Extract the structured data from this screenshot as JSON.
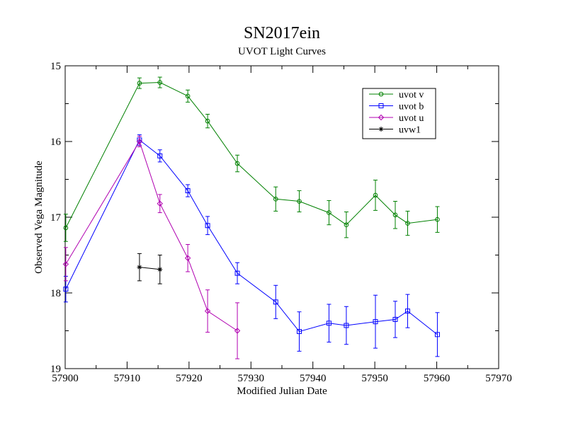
{
  "chart_data": {
    "type": "line",
    "title": "SN2017ein",
    "subtitle": "UVOT Light Curves",
    "xlabel": "Modified Julian Date",
    "ylabel": "Observed Vega Magnitude",
    "xlim": [
      57900,
      57970
    ],
    "ylim": [
      15,
      19
    ],
    "y_inverted": true,
    "x_ticks": [
      "57900",
      "57910",
      "57920",
      "57930",
      "57940",
      "57950",
      "57960",
      "57970"
    ],
    "y_ticks": [
      "15",
      "16",
      "17",
      "18",
      "19"
    ],
    "grid": false,
    "legend_position": "top-right",
    "series": [
      {
        "name": "uvot v",
        "color": "#008000",
        "marker": "circle",
        "points": [
          {
            "x": 57900.1,
            "y": 17.14,
            "err": 0.18
          },
          {
            "x": 57912.0,
            "y": 15.23,
            "err": 0.07
          },
          {
            "x": 57915.3,
            "y": 15.22,
            "err": 0.07
          },
          {
            "x": 57919.8,
            "y": 15.4,
            "err": 0.08
          },
          {
            "x": 57923.0,
            "y": 15.73,
            "err": 0.09
          },
          {
            "x": 57927.8,
            "y": 16.29,
            "err": 0.11
          },
          {
            "x": 57934.0,
            "y": 16.76,
            "err": 0.16
          },
          {
            "x": 57937.8,
            "y": 16.79,
            "err": 0.14
          },
          {
            "x": 57942.6,
            "y": 16.94,
            "err": 0.16
          },
          {
            "x": 57945.4,
            "y": 17.1,
            "err": 0.17
          },
          {
            "x": 57950.1,
            "y": 16.71,
            "err": 0.2
          },
          {
            "x": 57953.3,
            "y": 16.97,
            "err": 0.18
          },
          {
            "x": 57955.3,
            "y": 17.08,
            "err": 0.16
          },
          {
            "x": 57960.1,
            "y": 17.03,
            "err": 0.17
          }
        ]
      },
      {
        "name": "uvot b",
        "color": "#0000ff",
        "marker": "square",
        "points": [
          {
            "x": 57900.1,
            "y": 17.95,
            "err": 0.17
          },
          {
            "x": 57912.0,
            "y": 15.98,
            "err": 0.07
          },
          {
            "x": 57915.3,
            "y": 16.19,
            "err": 0.08
          },
          {
            "x": 57919.8,
            "y": 16.65,
            "err": 0.08
          },
          {
            "x": 57923.0,
            "y": 17.11,
            "err": 0.12
          },
          {
            "x": 57927.8,
            "y": 17.74,
            "err": 0.14
          },
          {
            "x": 57934.0,
            "y": 18.12,
            "err": 0.22
          },
          {
            "x": 57937.8,
            "y": 18.51,
            "err": 0.26
          },
          {
            "x": 57942.6,
            "y": 18.4,
            "err": 0.25
          },
          {
            "x": 57945.4,
            "y": 18.43,
            "err": 0.25
          },
          {
            "x": 57950.1,
            "y": 18.38,
            "err": 0.35
          },
          {
            "x": 57953.3,
            "y": 18.35,
            "err": 0.24
          },
          {
            "x": 57955.3,
            "y": 18.24,
            "err": 0.22
          },
          {
            "x": 57960.1,
            "y": 18.55,
            "err": 0.29
          }
        ]
      },
      {
        "name": "uvot u",
        "color": "#b000b0",
        "marker": "diamond",
        "points": [
          {
            "x": 57900.1,
            "y": 17.62,
            "err": 0.22
          },
          {
            "x": 57912.0,
            "y": 16.0,
            "err": 0.07
          },
          {
            "x": 57915.3,
            "y": 16.82,
            "err": 0.12
          },
          {
            "x": 57919.8,
            "y": 17.54,
            "err": 0.18
          },
          {
            "x": 57923.0,
            "y": 18.24,
            "err": 0.28
          },
          {
            "x": 57927.8,
            "y": 18.5,
            "err": 0.37
          }
        ]
      },
      {
        "name": "uvw1",
        "color": "#000000",
        "marker": "star",
        "points": [
          {
            "x": 57912.0,
            "y": 17.66,
            "err": 0.18
          },
          {
            "x": 57915.3,
            "y": 17.69,
            "err": 0.19
          }
        ]
      }
    ]
  }
}
